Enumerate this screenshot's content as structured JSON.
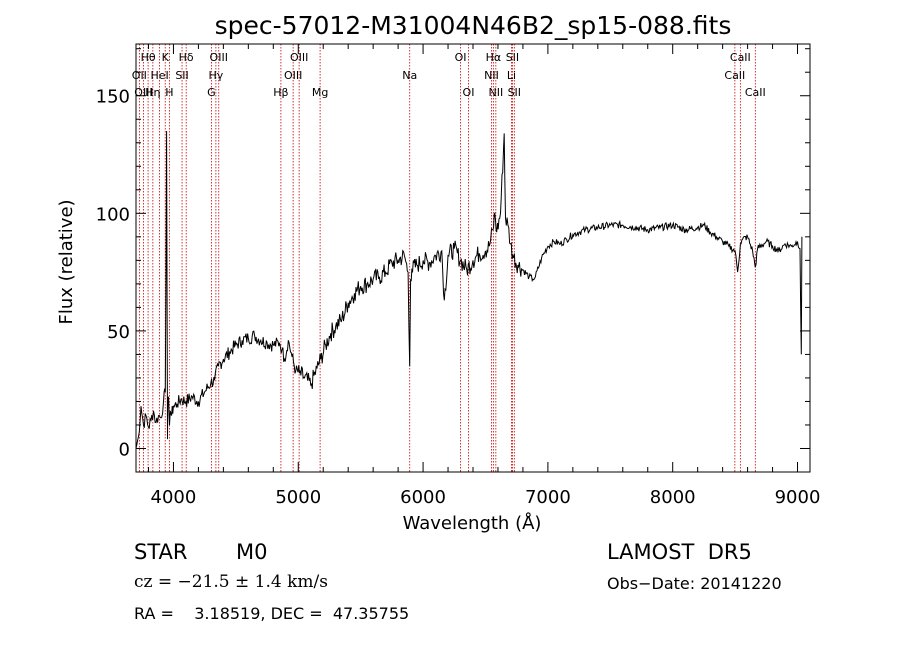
{
  "chart_data": {
    "type": "line",
    "title": "spec-57012-M31004N46B2_sp15-088.fits",
    "xlabel": "Wavelength (Å)",
    "ylabel": "Flux (relative)",
    "xlim": [
      3700,
      9100
    ],
    "ylim": [
      -10,
      172
    ],
    "xticks": [
      4000,
      5000,
      6000,
      7000,
      8000,
      9000
    ],
    "yticks": [
      0,
      50,
      100,
      150
    ],
    "grid": false,
    "series": [
      {
        "color": "#000000",
        "x": [
          3700,
          3720,
          3740,
          3760,
          3780,
          3800,
          3820,
          3840,
          3860,
          3880,
          3900,
          3920,
          3935,
          3945,
          3952,
          3955,
          3960,
          3968,
          3975,
          3985,
          4000,
          4030,
          4060,
          4100,
          4150,
          4200,
          4250,
          4300,
          4330,
          4360,
          4400,
          4450,
          4500,
          4550,
          4600,
          4650,
          4700,
          4750,
          4800,
          4850,
          4870,
          4890,
          4920,
          4950,
          4980,
          5010,
          5050,
          5100,
          5150,
          5180,
          5220,
          5260,
          5300,
          5350,
          5400,
          5450,
          5500,
          5550,
          5600,
          5650,
          5700,
          5750,
          5800,
          5850,
          5880,
          5893,
          5900,
          5910,
          5950,
          6000,
          6050,
          6100,
          6150,
          6170,
          6200,
          6250,
          6300,
          6350,
          6400,
          6450,
          6500,
          6530,
          6560,
          6575,
          6590,
          6620,
          6650,
          6660,
          6680,
          6700,
          6720,
          6760,
          6800,
          6850,
          6880,
          6900,
          6950,
          7000,
          7050,
          7100,
          7150,
          7200,
          7250,
          7300,
          7400,
          7500,
          7600,
          7700,
          7800,
          7900,
          8000,
          8100,
          8200,
          8250,
          8300,
          8350,
          8400,
          8450,
          8500,
          8520,
          8542,
          8560,
          8600,
          8640,
          8662,
          8680,
          8750,
          8800,
          8850,
          8900,
          8950,
          9000,
          9020,
          9030,
          9035
        ],
        "y": [
          0,
          5,
          18,
          10,
          14,
          9,
          12,
          16,
          11,
          14,
          13,
          20,
          24,
          135,
          4,
          20,
          22,
          10,
          16,
          14,
          18,
          19,
          21,
          20,
          22,
          20,
          24,
          28,
          29,
          35,
          38,
          41,
          44,
          46,
          47,
          48,
          46,
          45,
          44,
          45,
          42,
          38,
          46,
          39,
          33,
          32,
          30,
          27,
          34,
          38,
          44,
          49,
          52,
          55,
          62,
          66,
          69,
          70,
          72,
          73,
          75,
          79,
          80,
          82,
          75,
          35,
          72,
          76,
          78,
          80,
          79,
          82,
          84,
          63,
          82,
          85,
          80,
          76,
          80,
          83,
          84,
          86,
          93,
          100,
          92,
          100,
          134,
          98,
          95,
          87,
          82,
          78,
          76,
          73,
          72,
          73,
          81,
          86,
          88,
          87,
          89,
          91,
          92,
          93,
          94,
          95,
          95,
          94,
          93,
          94,
          95,
          93,
          94,
          95,
          92,
          90,
          88,
          86,
          84,
          75,
          87,
          89,
          90,
          84,
          77,
          85,
          88,
          86,
          84,
          87,
          86,
          88,
          85,
          40,
          90
        ]
      }
    ],
    "line_labels": [
      {
        "name": "Hθ",
        "wl": 3797,
        "row": 0
      },
      {
        "name": "OII",
        "wl": 3727,
        "row": 1
      },
      {
        "name": "OIII",
        "wl": 3760,
        "row": 2
      },
      {
        "name": "Hη",
        "wl": 3835,
        "row": 2
      },
      {
        "name": "K",
        "wl": 3934,
        "row": 0
      },
      {
        "name": "HeI",
        "wl": 3889,
        "row": 1
      },
      {
        "name": "H",
        "wl": 3968,
        "row": 2
      },
      {
        "name": "Hδ",
        "wl": 4102,
        "row": 0
      },
      {
        "name": "SII",
        "wl": 4069,
        "row": 1
      },
      {
        "name": "OIII",
        "wl": 4363,
        "row": 0
      },
      {
        "name": "Hγ",
        "wl": 4340,
        "row": 1
      },
      {
        "name": "G",
        "wl": 4304,
        "row": 2
      },
      {
        "name": "OIII",
        "wl": 5007,
        "row": 0
      },
      {
        "name": "OIII",
        "wl": 4959,
        "row": 1
      },
      {
        "name": "Hβ",
        "wl": 4861,
        "row": 2
      },
      {
        "name": "Mg",
        "wl": 5175,
        "row": 2
      },
      {
        "name": "Na",
        "wl": 5893,
        "row": 1
      },
      {
        "name": "OI",
        "wl": 6300,
        "row": 0
      },
      {
        "name": "OI",
        "wl": 6364,
        "row": 2
      },
      {
        "name": "Hα",
        "wl": 6563,
        "row": 0
      },
      {
        "name": "NII",
        "wl": 6548,
        "row": 1
      },
      {
        "name": "NII",
        "wl": 6583,
        "row": 2
      },
      {
        "name": "SII",
        "wl": 6716,
        "row": 0
      },
      {
        "name": "Li",
        "wl": 6708,
        "row": 1
      },
      {
        "name": "SII",
        "wl": 6731,
        "row": 2
      },
      {
        "name": "CaII",
        "wl": 8542,
        "row": 0
      },
      {
        "name": "CaII",
        "wl": 8498,
        "row": 1
      },
      {
        "name": "CaII",
        "wl": 8662,
        "row": 2
      }
    ],
    "line_color": "#cc0000"
  },
  "info": {
    "class": "STAR",
    "subclass": "M0",
    "survey": "LAMOST  DR5",
    "cz": "cz = −21.5 ± 1.4 km/s",
    "obs_date": "Obs−Date: 20141220",
    "coords": "RA =    3.18519, DEC =  47.35755"
  }
}
